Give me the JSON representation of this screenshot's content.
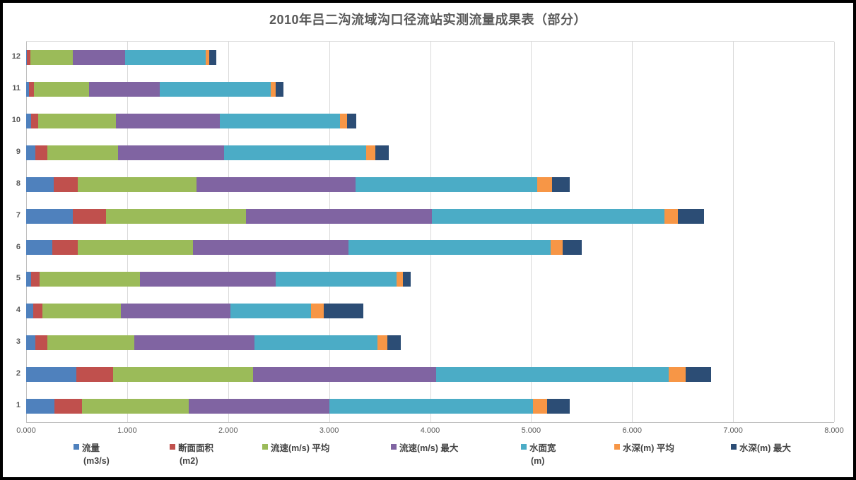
{
  "title": "2010年吕二沟流域沟口径流站实测流量成果表（部分）",
  "colors": {
    "frame_border": "#000000",
    "background": "#ffffff",
    "gridline": "#d9d9d9",
    "axis_line": "#bfbfbf",
    "text_gray": "#595959"
  },
  "chart_data": {
    "type": "bar",
    "orientation": "horizontal",
    "stacked": true,
    "title": "2010年吕二沟流域沟口径流站实测流量成果表（部分）",
    "categories": [
      "1",
      "2",
      "3",
      "4",
      "5",
      "6",
      "7",
      "8",
      "9",
      "10",
      "11",
      "12"
    ],
    "category_order_note": "category 1 at bottom, 12 at top",
    "xlim": [
      0,
      8
    ],
    "xticks": [
      "0.000",
      "1.000",
      "2.000",
      "3.000",
      "4.000",
      "5.000",
      "6.000",
      "7.000",
      "8.000"
    ],
    "grid": "vertical",
    "legend_position": "bottom",
    "series": [
      {
        "name": "流量",
        "sublabel": "(m3/s)",
        "color": "#4F81BD",
        "values": [
          0.28,
          0.5,
          0.09,
          0.07,
          0.05,
          0.26,
          0.46,
          0.27,
          0.09,
          0.05,
          0.03,
          0.01
        ]
      },
      {
        "name": "断面面积",
        "sublabel": "(m2)",
        "color": "#C0504D",
        "values": [
          0.27,
          0.36,
          0.12,
          0.09,
          0.08,
          0.25,
          0.33,
          0.24,
          0.12,
          0.07,
          0.05,
          0.03
        ]
      },
      {
        "name": "流速(m/s) 平均",
        "sublabel": "",
        "color": "#9BBB59",
        "values": [
          1.06,
          1.39,
          0.86,
          0.78,
          1.0,
          1.14,
          1.39,
          1.18,
          0.7,
          0.77,
          0.54,
          0.42
        ]
      },
      {
        "name": "流速(m/s) 最大",
        "sublabel": "",
        "color": "#8064A2",
        "values": [
          1.39,
          1.81,
          1.19,
          1.08,
          1.34,
          1.54,
          1.84,
          1.57,
          1.05,
          1.03,
          0.7,
          0.52
        ]
      },
      {
        "name": "水面宽",
        "sublabel": "(m)",
        "color": "#4BACC6",
        "values": [
          2.02,
          2.3,
          1.22,
          0.8,
          1.2,
          2.0,
          2.3,
          1.8,
          1.41,
          1.19,
          1.1,
          0.8
        ]
      },
      {
        "name": "水深(m) 平均",
        "sublabel": "",
        "color": "#F79646",
        "values": [
          0.14,
          0.17,
          0.1,
          0.13,
          0.06,
          0.12,
          0.13,
          0.15,
          0.09,
          0.07,
          0.05,
          0.03
        ]
      },
      {
        "name": "水深(m) 最大",
        "sublabel": "",
        "color": "#2C4D75",
        "values": [
          0.22,
          0.25,
          0.13,
          0.39,
          0.08,
          0.19,
          0.26,
          0.17,
          0.13,
          0.09,
          0.08,
          0.07
        ]
      }
    ]
  }
}
